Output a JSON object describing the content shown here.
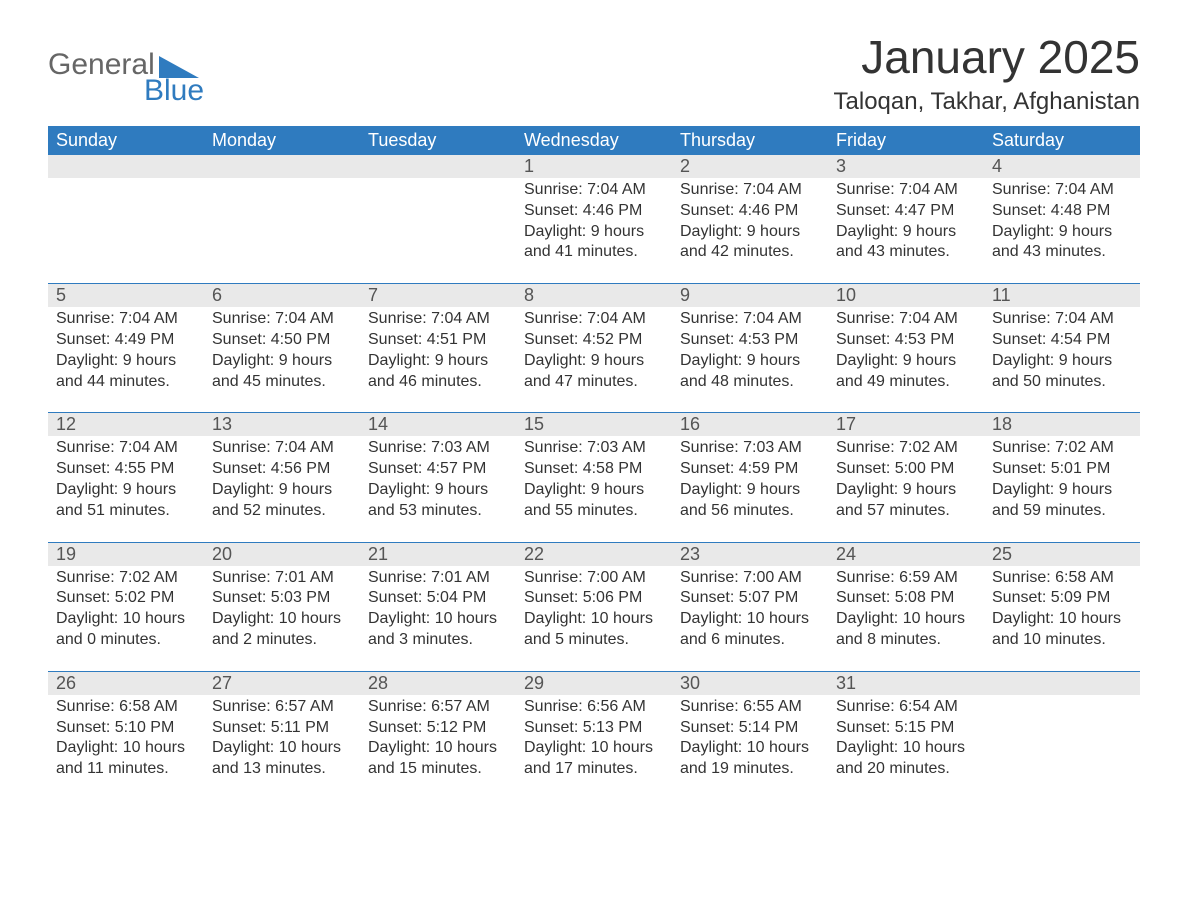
{
  "logo": {
    "word1": "General",
    "word2": "Blue",
    "brand_color": "#2f7bbf"
  },
  "title": "January 2025",
  "location": "Taloqan, Takhar, Afghanistan",
  "header_bg": "#2f7bbf",
  "header_fg": "#ffffff",
  "daynum_bg": "#e9e9e9",
  "text_color": "#333333",
  "days_of_week": [
    "Sunday",
    "Monday",
    "Tuesday",
    "Wednesday",
    "Thursday",
    "Friday",
    "Saturday"
  ],
  "weeks": [
    [
      null,
      null,
      null,
      {
        "n": "1",
        "sr": "Sunrise: 7:04 AM",
        "ss": "Sunset: 4:46 PM",
        "d1": "Daylight: 9 hours",
        "d2": "and 41 minutes."
      },
      {
        "n": "2",
        "sr": "Sunrise: 7:04 AM",
        "ss": "Sunset: 4:46 PM",
        "d1": "Daylight: 9 hours",
        "d2": "and 42 minutes."
      },
      {
        "n": "3",
        "sr": "Sunrise: 7:04 AM",
        "ss": "Sunset: 4:47 PM",
        "d1": "Daylight: 9 hours",
        "d2": "and 43 minutes."
      },
      {
        "n": "4",
        "sr": "Sunrise: 7:04 AM",
        "ss": "Sunset: 4:48 PM",
        "d1": "Daylight: 9 hours",
        "d2": "and 43 minutes."
      }
    ],
    [
      {
        "n": "5",
        "sr": "Sunrise: 7:04 AM",
        "ss": "Sunset: 4:49 PM",
        "d1": "Daylight: 9 hours",
        "d2": "and 44 minutes."
      },
      {
        "n": "6",
        "sr": "Sunrise: 7:04 AM",
        "ss": "Sunset: 4:50 PM",
        "d1": "Daylight: 9 hours",
        "d2": "and 45 minutes."
      },
      {
        "n": "7",
        "sr": "Sunrise: 7:04 AM",
        "ss": "Sunset: 4:51 PM",
        "d1": "Daylight: 9 hours",
        "d2": "and 46 minutes."
      },
      {
        "n": "8",
        "sr": "Sunrise: 7:04 AM",
        "ss": "Sunset: 4:52 PM",
        "d1": "Daylight: 9 hours",
        "d2": "and 47 minutes."
      },
      {
        "n": "9",
        "sr": "Sunrise: 7:04 AM",
        "ss": "Sunset: 4:53 PM",
        "d1": "Daylight: 9 hours",
        "d2": "and 48 minutes."
      },
      {
        "n": "10",
        "sr": "Sunrise: 7:04 AM",
        "ss": "Sunset: 4:53 PM",
        "d1": "Daylight: 9 hours",
        "d2": "and 49 minutes."
      },
      {
        "n": "11",
        "sr": "Sunrise: 7:04 AM",
        "ss": "Sunset: 4:54 PM",
        "d1": "Daylight: 9 hours",
        "d2": "and 50 minutes."
      }
    ],
    [
      {
        "n": "12",
        "sr": "Sunrise: 7:04 AM",
        "ss": "Sunset: 4:55 PM",
        "d1": "Daylight: 9 hours",
        "d2": "and 51 minutes."
      },
      {
        "n": "13",
        "sr": "Sunrise: 7:04 AM",
        "ss": "Sunset: 4:56 PM",
        "d1": "Daylight: 9 hours",
        "d2": "and 52 minutes."
      },
      {
        "n": "14",
        "sr": "Sunrise: 7:03 AM",
        "ss": "Sunset: 4:57 PM",
        "d1": "Daylight: 9 hours",
        "d2": "and 53 minutes."
      },
      {
        "n": "15",
        "sr": "Sunrise: 7:03 AM",
        "ss": "Sunset: 4:58 PM",
        "d1": "Daylight: 9 hours",
        "d2": "and 55 minutes."
      },
      {
        "n": "16",
        "sr": "Sunrise: 7:03 AM",
        "ss": "Sunset: 4:59 PM",
        "d1": "Daylight: 9 hours",
        "d2": "and 56 minutes."
      },
      {
        "n": "17",
        "sr": "Sunrise: 7:02 AM",
        "ss": "Sunset: 5:00 PM",
        "d1": "Daylight: 9 hours",
        "d2": "and 57 minutes."
      },
      {
        "n": "18",
        "sr": "Sunrise: 7:02 AM",
        "ss": "Sunset: 5:01 PM",
        "d1": "Daylight: 9 hours",
        "d2": "and 59 minutes."
      }
    ],
    [
      {
        "n": "19",
        "sr": "Sunrise: 7:02 AM",
        "ss": "Sunset: 5:02 PM",
        "d1": "Daylight: 10 hours",
        "d2": "and 0 minutes."
      },
      {
        "n": "20",
        "sr": "Sunrise: 7:01 AM",
        "ss": "Sunset: 5:03 PM",
        "d1": "Daylight: 10 hours",
        "d2": "and 2 minutes."
      },
      {
        "n": "21",
        "sr": "Sunrise: 7:01 AM",
        "ss": "Sunset: 5:04 PM",
        "d1": "Daylight: 10 hours",
        "d2": "and 3 minutes."
      },
      {
        "n": "22",
        "sr": "Sunrise: 7:00 AM",
        "ss": "Sunset: 5:06 PM",
        "d1": "Daylight: 10 hours",
        "d2": "and 5 minutes."
      },
      {
        "n": "23",
        "sr": "Sunrise: 7:00 AM",
        "ss": "Sunset: 5:07 PM",
        "d1": "Daylight: 10 hours",
        "d2": "and 6 minutes."
      },
      {
        "n": "24",
        "sr": "Sunrise: 6:59 AM",
        "ss": "Sunset: 5:08 PM",
        "d1": "Daylight: 10 hours",
        "d2": "and 8 minutes."
      },
      {
        "n": "25",
        "sr": "Sunrise: 6:58 AM",
        "ss": "Sunset: 5:09 PM",
        "d1": "Daylight: 10 hours",
        "d2": "and 10 minutes."
      }
    ],
    [
      {
        "n": "26",
        "sr": "Sunrise: 6:58 AM",
        "ss": "Sunset: 5:10 PM",
        "d1": "Daylight: 10 hours",
        "d2": "and 11 minutes."
      },
      {
        "n": "27",
        "sr": "Sunrise: 6:57 AM",
        "ss": "Sunset: 5:11 PM",
        "d1": "Daylight: 10 hours",
        "d2": "and 13 minutes."
      },
      {
        "n": "28",
        "sr": "Sunrise: 6:57 AM",
        "ss": "Sunset: 5:12 PM",
        "d1": "Daylight: 10 hours",
        "d2": "and 15 minutes."
      },
      {
        "n": "29",
        "sr": "Sunrise: 6:56 AM",
        "ss": "Sunset: 5:13 PM",
        "d1": "Daylight: 10 hours",
        "d2": "and 17 minutes."
      },
      {
        "n": "30",
        "sr": "Sunrise: 6:55 AM",
        "ss": "Sunset: 5:14 PM",
        "d1": "Daylight: 10 hours",
        "d2": "and 19 minutes."
      },
      {
        "n": "31",
        "sr": "Sunrise: 6:54 AM",
        "ss": "Sunset: 5:15 PM",
        "d1": "Daylight: 10 hours",
        "d2": "and 20 minutes."
      },
      null
    ]
  ]
}
